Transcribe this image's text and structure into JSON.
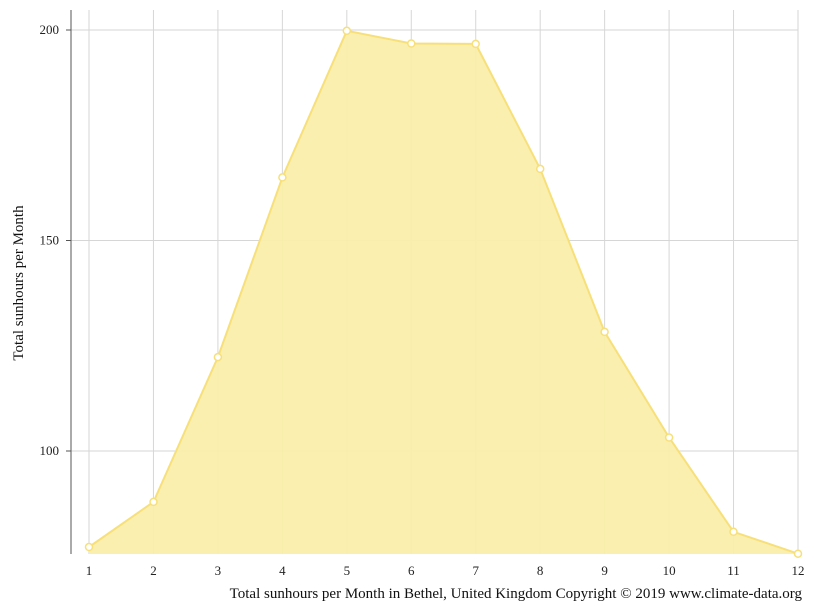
{
  "chart_data": {
    "type": "area",
    "title": "",
    "xlabel": "",
    "ylabel": "Total sunhours per Month",
    "x": [
      1,
      2,
      3,
      4,
      5,
      6,
      7,
      8,
      9,
      10,
      11,
      12
    ],
    "x_tick_labels": [
      "1",
      "2",
      "3",
      "4",
      "5",
      "6",
      "7",
      "8",
      "9",
      "10",
      "11",
      "12"
    ],
    "y_ticks": [
      100,
      150,
      200
    ],
    "y_tick_labels": [
      "100",
      "150",
      "200"
    ],
    "xlim": [
      1,
      12
    ],
    "ylim": [
      75.6,
      204.6
    ],
    "grid": true,
    "series": [
      {
        "values": [
          77.2,
          87.9,
          122.3,
          165.0,
          199.8,
          196.8,
          196.7,
          167.0,
          128.3,
          103.2,
          80.8,
          75.6
        ],
        "color": "#f7e07a",
        "fill": "#faeeaa"
      }
    ],
    "caption": "Total sunhours per Month in Bethel, United Kingdom Copyright © 2019 www.climate-data.org"
  }
}
